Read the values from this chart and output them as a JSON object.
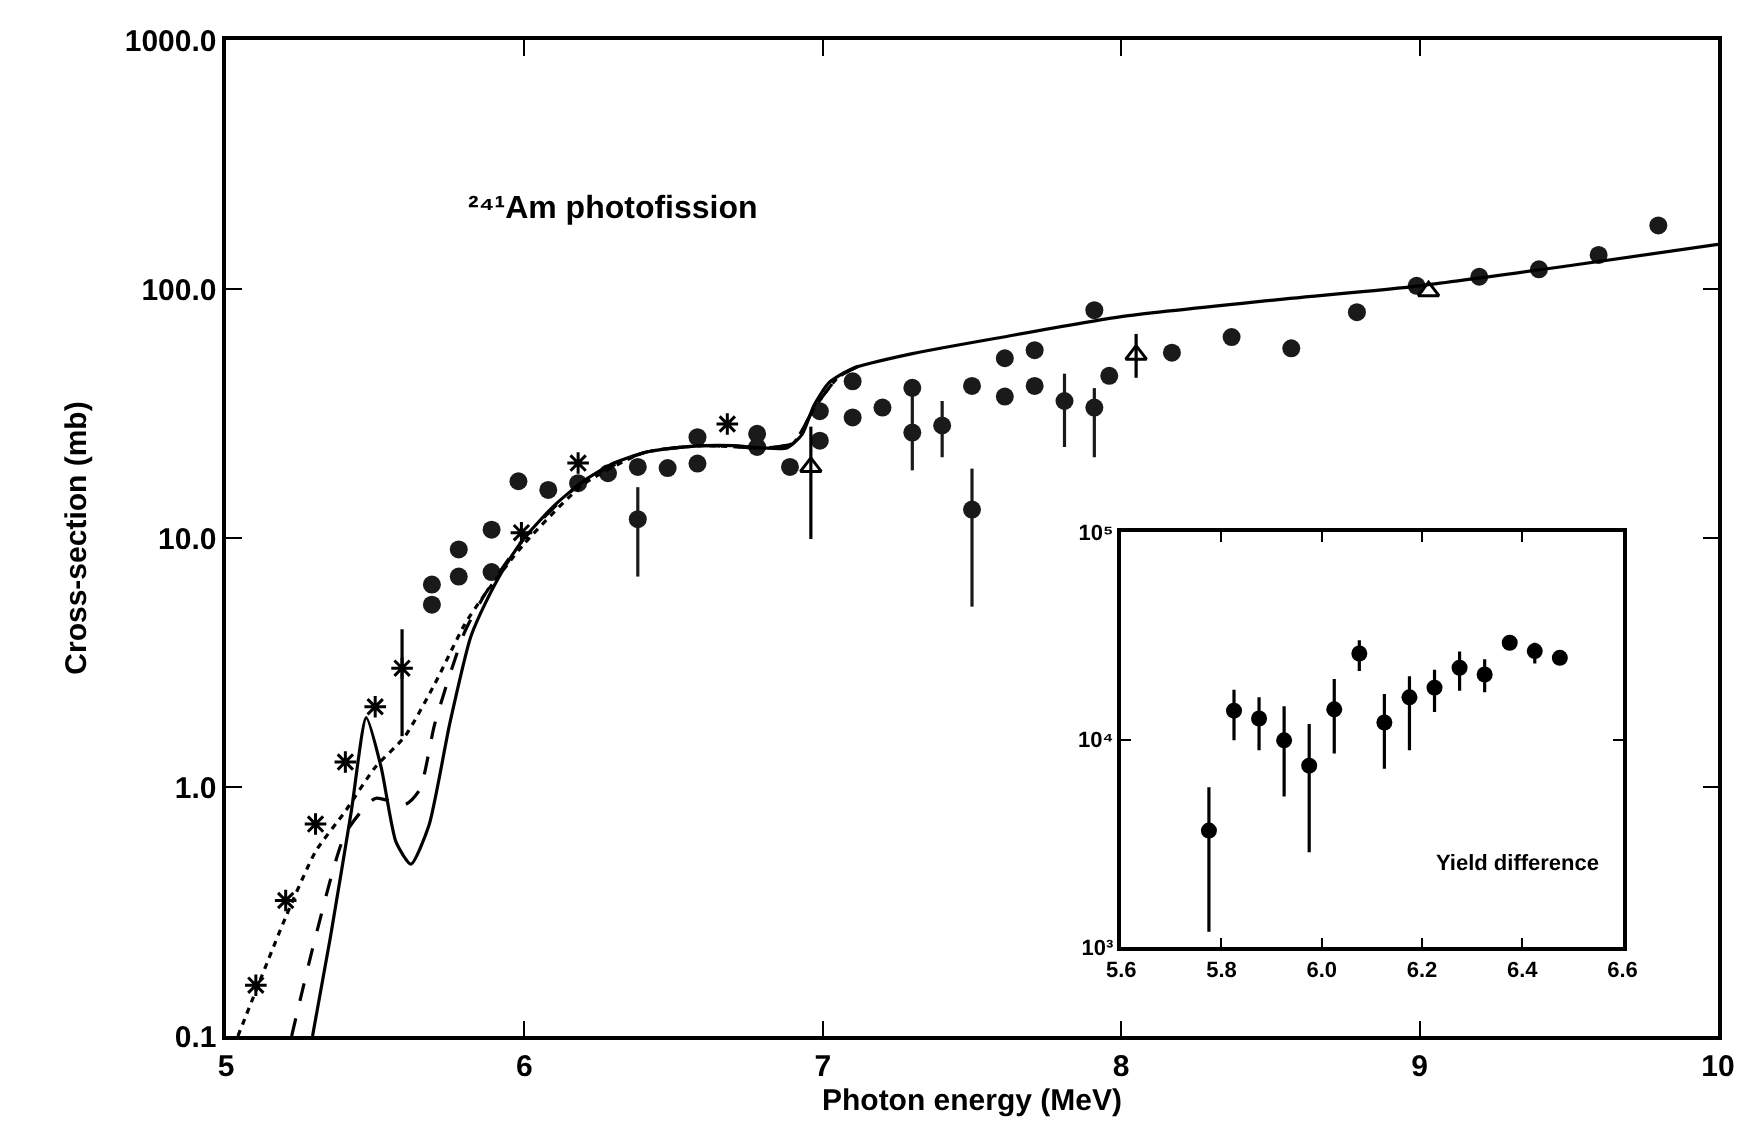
{
  "chart_data": [
    {
      "type": "scatter",
      "xlabel": "Photon energy (MeV)",
      "ylabel": "Cross-section (mb)",
      "log": "y",
      "xlim": [
        5,
        10
      ],
      "xticks": [
        5,
        6,
        7,
        8,
        9,
        10
      ],
      "ylim": [
        0.1,
        1000
      ],
      "yticks": [
        {
          "value": 0.1,
          "label": "0.1"
        },
        {
          "value": 1,
          "label": "1.0"
        },
        {
          "value": 10,
          "label": "10.0"
        },
        {
          "value": 100,
          "label": "100.0"
        },
        {
          "value": 1000,
          "label": "1000.0"
        }
      ],
      "annotations": [
        "²⁴¹Am photofission"
      ],
      "series": [
        {
          "marker": "cross",
          "color": "#000000",
          "x": [
            5.1,
            5.2,
            5.3,
            5.4,
            5.5,
            5.59,
            5.99,
            6.18,
            6.68
          ],
          "values": [
            0.16,
            0.35,
            0.71,
            1.26,
            2.1,
            3.0,
            10.5,
            20,
            28.7
          ],
          "errors": [
            null,
            null,
            null,
            null,
            null,
            [
              1.6,
              4.3
            ],
            null,
            null,
            null
          ]
        },
        {
          "marker": "circle",
          "color": "#1a1a1a",
          "x": [
            5.69,
            5.69,
            5.78,
            5.78,
            5.89,
            5.89,
            5.98,
            6.08,
            6.18,
            6.28,
            6.38,
            6.38,
            6.48,
            6.58,
            6.58,
            6.78,
            6.78,
            6.89,
            6.99,
            6.99,
            7.1,
            7.1,
            7.2,
            7.3,
            7.3,
            7.4,
            7.5,
            7.5,
            7.61,
            7.61,
            7.71,
            7.71,
            7.81,
            7.91,
            7.91,
            7.96,
            8.17,
            8.37,
            8.57,
            8.79,
            8.99,
            9.2,
            9.4,
            9.6,
            9.8
          ],
          "values": [
            6.5,
            5.4,
            9.0,
            7.0,
            10.8,
            7.3,
            16.9,
            15.6,
            16.6,
            18.2,
            19.3,
            11.9,
            19.1,
            19.9,
            25.4,
            26.2,
            23.2,
            19.3,
            32.3,
            24.6,
            42.6,
            30.5,
            33.4,
            40.1,
            26.5,
            28.3,
            40.8,
            13.0,
            52.7,
            37.0,
            56.8,
            40.8,
            35.5,
            82.2,
            33.4,
            44.8,
            55.5,
            64.1,
            57.8,
            80.7,
            103,
            112,
            120,
            137,
            180
          ],
          "errors": [
            null,
            null,
            null,
            null,
            null,
            null,
            null,
            null,
            null,
            null,
            null,
            [
              7.0,
              16
            ],
            null,
            null,
            null,
            null,
            null,
            null,
            null,
            null,
            null,
            null,
            null,
            null,
            [
              18.7,
              42.6
            ],
            [
              21.1,
              35.5
            ],
            null,
            [
              5.3,
              19
            ],
            null,
            null,
            null,
            null,
            [
              23.2,
              45.7
            ],
            null,
            [
              21.1,
              40
            ],
            null,
            null,
            null,
            null,
            null,
            null,
            null,
            null,
            null,
            null
          ]
        },
        {
          "marker": "triangle",
          "color": "#000000",
          "x": [
            6.96,
            8.05,
            9.03
          ],
          "values": [
            19.3,
            54.5,
            98
          ],
          "errors": [
            [
              9.9,
              28
            ],
            [
              44,
              66
            ],
            null
          ]
        },
        {
          "type": "line",
          "line_style": "solid",
          "color": "#000000",
          "x": [
            5.29,
            5.35,
            5.42,
            5.47,
            5.52,
            5.57,
            5.62,
            5.68,
            5.75,
            5.82,
            5.87,
            5.93,
            6.0,
            6.1,
            6.2,
            6.3,
            6.4,
            6.5,
            6.6,
            6.7,
            6.8,
            6.88,
            6.93,
            6.97,
            7.02,
            7.1,
            7.3,
            7.6,
            8.0,
            8.5,
            9.0,
            9.5,
            10.0
          ],
          "values": [
            0.1,
            0.25,
            0.8,
            1.9,
            1.2,
            0.6,
            0.49,
            0.7,
            1.8,
            4.0,
            5.5,
            7.5,
            10,
            13.5,
            17,
            20,
            22,
            23,
            23.5,
            23.5,
            23,
            23,
            26,
            34,
            42,
            48,
            55,
            64,
            77.4,
            90,
            103,
            124,
            151
          ]
        },
        {
          "type": "line",
          "line_style": "dashed",
          "color": "#000000",
          "x": [
            5.22,
            5.3,
            5.4,
            5.5,
            5.6,
            5.65,
            5.7,
            5.8,
            5.87,
            6.0,
            6.2,
            6.4,
            6.6,
            6.8,
            6.9,
            6.97,
            7.05,
            7.12
          ],
          "values": [
            0.1,
            0.25,
            0.65,
            0.9,
            0.85,
            0.98,
            1.8,
            4.2,
            6,
            10,
            17,
            22,
            23.5,
            23,
            24,
            33,
            44,
            49
          ]
        },
        {
          "type": "line",
          "line_style": "dotted",
          "color": "#000000",
          "x": [
            5.04,
            5.2,
            5.3,
            5.4,
            5.5,
            5.6,
            5.7,
            5.8,
            5.87,
            6.0,
            6.2,
            6.4,
            6.6,
            6.8,
            6.9,
            6.97,
            7.05,
            7.12
          ],
          "values": [
            0.1,
            0.3,
            0.55,
            0.8,
            1.2,
            1.6,
            2.6,
            4.5,
            6,
            9.5,
            16.5,
            22,
            23.5,
            23,
            24,
            33,
            44,
            49
          ]
        }
      ]
    },
    {
      "type": "scatter",
      "log": "y",
      "xlim": [
        5.6,
        6.6
      ],
      "xticks": [
        5.6,
        5.8,
        {
          "value": 6.0,
          "label": "6.0"
        },
        6.2,
        6.4,
        6.6
      ],
      "ylim": [
        1000,
        100000
      ],
      "yticks": [
        {
          "value": 1000,
          "label": "10³"
        },
        {
          "value": 10000,
          "label": "10⁴"
        },
        {
          "value": 100000,
          "label": "10⁵"
        }
      ],
      "annotations": [
        "Yield difference"
      ],
      "series": [
        {
          "marker": "circle",
          "color": "#000000",
          "x": [
            5.775,
            5.825,
            5.875,
            5.925,
            5.975,
            6.025,
            6.075,
            6.125,
            6.175,
            6.225,
            6.275,
            6.325,
            6.375,
            6.425,
            6.475
          ],
          "values": [
            3650,
            13800,
            12650,
            9930,
            7500,
            14000,
            26000,
            12100,
            16000,
            17800,
            22200,
            20600,
            29300,
            26700,
            24800
          ],
          "errors": [
            [
              1190,
              5900
            ],
            [
              9930,
              17400
            ],
            [
              8900,
              16000
            ],
            [
              5330,
              14500
            ],
            [
              2870,
              11900
            ],
            [
              8570,
              19600
            ],
            [
              21400,
              30100
            ],
            [
              7240,
              16600
            ],
            [
              8900,
              20200
            ],
            [
              13600,
              21700
            ],
            [
              17200,
              26600
            ],
            [
              16900,
              24400
            ],
            null,
            [
              23300,
              29300
            ],
            null
          ]
        }
      ]
    }
  ]
}
